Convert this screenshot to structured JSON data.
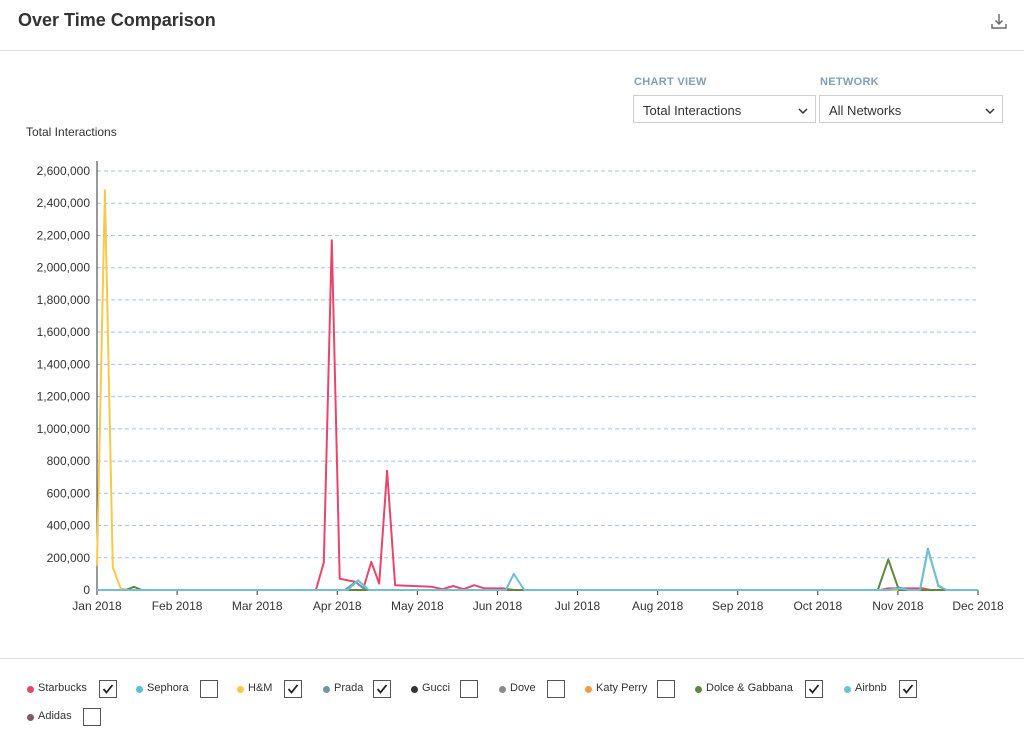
{
  "header": {
    "title": "Over Time Comparison",
    "download_icon": "download-icon"
  },
  "controls": {
    "chart_view": {
      "label": "CHART VIEW",
      "value": "Total Interactions"
    },
    "network": {
      "label": "NETWORK",
      "value": "All Networks"
    }
  },
  "chart_data": {
    "type": "line",
    "ylabel": "Total Interactions",
    "xlabel": "",
    "ylim": [
      0,
      2600000
    ],
    "yticks": [
      "2,600,000",
      "2,400,000",
      "2,200,000",
      "2,000,000",
      "1,800,000",
      "1,600,000",
      "1,400,000",
      "1,200,000",
      "1,000,000",
      "800,000",
      "600,000",
      "400,000",
      "200,000",
      "0"
    ],
    "xticks": [
      "Jan 2018",
      "Feb 2018",
      "Mar 2018",
      "Apr 2018",
      "May 2018",
      "Jun 2018",
      "Jul 2018",
      "Aug 2018",
      "Sep 2018",
      "Oct 2018",
      "Nov 2018",
      "Dec 2018"
    ],
    "xlim": [
      "2018-01-01",
      "2018-12-01"
    ],
    "grid": true,
    "series": [
      {
        "name": "H&M",
        "color": "#f7c948",
        "points": [
          [
            "2018-01-01",
            150000
          ],
          [
            "2018-01-04",
            2480000
          ],
          [
            "2018-01-07",
            140000
          ],
          [
            "2018-01-10",
            10000
          ],
          [
            "2018-01-13",
            0
          ],
          [
            "2018-12-01",
            0
          ]
        ]
      },
      {
        "name": "Starbucks",
        "color": "#e9456b",
        "points": [
          [
            "2018-01-01",
            0
          ],
          [
            "2018-03-25",
            0
          ],
          [
            "2018-03-28",
            170000
          ],
          [
            "2018-03-31",
            2170000
          ],
          [
            "2018-04-03",
            70000
          ],
          [
            "2018-04-06",
            60000
          ],
          [
            "2018-04-09",
            50000
          ],
          [
            "2018-04-12",
            10000
          ],
          [
            "2018-04-15",
            175000
          ],
          [
            "2018-04-18",
            40000
          ],
          [
            "2018-04-21",
            740000
          ],
          [
            "2018-04-24",
            30000
          ],
          [
            "2018-05-01",
            25000
          ],
          [
            "2018-05-08",
            20000
          ],
          [
            "2018-05-12",
            5000
          ],
          [
            "2018-05-16",
            25000
          ],
          [
            "2018-05-20",
            5000
          ],
          [
            "2018-05-24",
            30000
          ],
          [
            "2018-05-28",
            10000
          ],
          [
            "2018-06-04",
            10000
          ],
          [
            "2018-06-08",
            0
          ],
          [
            "2018-10-25",
            0
          ],
          [
            "2018-10-28",
            10000
          ],
          [
            "2018-11-10",
            10000
          ],
          [
            "2018-11-13",
            0
          ],
          [
            "2018-12-01",
            0
          ]
        ]
      },
      {
        "name": "Prada",
        "color": "#6f95a8",
        "points": [
          [
            "2018-01-01",
            0
          ],
          [
            "2018-04-05",
            0
          ],
          [
            "2018-04-09",
            50000
          ],
          [
            "2018-04-13",
            0
          ],
          [
            "2018-10-28",
            0
          ],
          [
            "2018-11-01",
            15000
          ],
          [
            "2018-11-05",
            0
          ],
          [
            "2018-11-09",
            0
          ],
          [
            "2018-11-12",
            255000
          ],
          [
            "2018-11-16",
            25000
          ],
          [
            "2018-11-19",
            0
          ],
          [
            "2018-12-01",
            0
          ]
        ]
      },
      {
        "name": "Dolce & Gabbana",
        "color": "#5c8a3c",
        "points": [
          [
            "2018-01-01",
            0
          ],
          [
            "2018-01-12",
            0
          ],
          [
            "2018-01-15",
            20000
          ],
          [
            "2018-01-18",
            0
          ],
          [
            "2018-10-24",
            0
          ],
          [
            "2018-10-28",
            190000
          ],
          [
            "2018-11-01",
            0
          ],
          [
            "2018-12-01",
            0
          ]
        ]
      },
      {
        "name": "Airbnb",
        "color": "#6fc0d4",
        "points": [
          [
            "2018-01-01",
            0
          ],
          [
            "2018-04-06",
            0
          ],
          [
            "2018-04-10",
            60000
          ],
          [
            "2018-04-14",
            0
          ],
          [
            "2018-06-05",
            0
          ],
          [
            "2018-06-08",
            100000
          ],
          [
            "2018-06-12",
            0
          ],
          [
            "2018-10-28",
            0
          ],
          [
            "2018-11-01",
            10000
          ],
          [
            "2018-11-05",
            0
          ],
          [
            "2018-11-09",
            0
          ],
          [
            "2018-11-12",
            250000
          ],
          [
            "2018-11-16",
            30000
          ],
          [
            "2018-11-19",
            0
          ],
          [
            "2018-12-01",
            0
          ]
        ]
      }
    ]
  },
  "legend": [
    {
      "name": "Starbucks",
      "color": "#e9456b",
      "checked": true
    },
    {
      "name": "Sephora",
      "color": "#5bc0d8",
      "checked": false
    },
    {
      "name": "H&M",
      "color": "#f7c948",
      "checked": true
    },
    {
      "name": "Prada",
      "color": "#6f95a8",
      "checked": true
    },
    {
      "name": "Gucci",
      "color": "#333333",
      "checked": false
    },
    {
      "name": "Dove",
      "color": "#8a8a8a",
      "checked": false
    },
    {
      "name": "Katy Perry",
      "color": "#f2994a",
      "checked": false
    },
    {
      "name": "Dolce & Gabbana",
      "color": "#5c8a3c",
      "checked": true
    },
    {
      "name": "Airbnb",
      "color": "#6fc0d4",
      "checked": true
    },
    {
      "name": "Adidas",
      "color": "#7a5c6e",
      "checked": false
    }
  ]
}
